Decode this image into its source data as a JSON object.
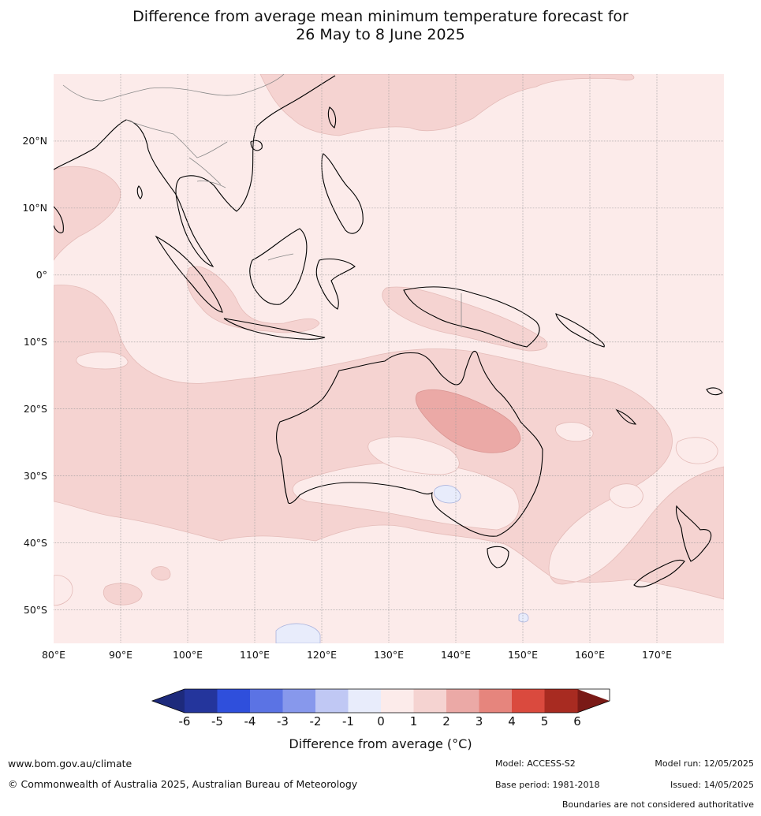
{
  "title_line1": "Difference from average mean minimum temperature forecast for",
  "title_line2": "26 May to 8 June 2025",
  "map": {
    "lon_range": [
      80,
      180
    ],
    "lat_range": [
      -55,
      30
    ],
    "lat_labels": [
      "20°N",
      "10°N",
      "0°",
      "10°S",
      "20°S",
      "30°S",
      "40°S",
      "50°S"
    ],
    "lat_values": [
      20,
      10,
      0,
      -10,
      -20,
      -30,
      -40,
      -50
    ],
    "lon_labels": [
      "80°E",
      "90°E",
      "100°E",
      "110°E",
      "120°E",
      "130°E",
      "140°E",
      "150°E",
      "160°E",
      "170°E"
    ],
    "lon_values": [
      80,
      90,
      100,
      110,
      120,
      130,
      140,
      150,
      160,
      170
    ],
    "grid": true
  },
  "colorbar": {
    "ticks": [
      "-6",
      "-5",
      "-4",
      "-3",
      "-2",
      "-1",
      "0",
      "1",
      "2",
      "3",
      "4",
      "5",
      "6"
    ],
    "bin_colors": [
      "#24359c",
      "#2f4fdc",
      "#5b73e4",
      "#8798ec",
      "#c0c8f4",
      "#e8ecfb",
      "#fcebea",
      "#f5d3d1",
      "#eba9a6",
      "#e6857d",
      "#da4a3e",
      "#a82b21"
    ],
    "under_color": "#1d2a7c",
    "over_color": "#7a1a16",
    "label": "Difference from average (°C)"
  },
  "footer": {
    "website": "www.bom.gov.au/climate",
    "copyright": "© Commonwealth of Australia 2025, Australian Bureau of Meteorology",
    "model": "Model: ACCESS-S2",
    "base_period": "Base period: 1981-2018",
    "model_run": "Model run: 12/05/2025",
    "issued": "Issued: 14/05/2025",
    "disclaimer": "Boundaries are not considered authoritative"
  },
  "colors": {
    "land_outline": "#000000",
    "border_outline": "#888888",
    "gridline": "#999999"
  }
}
